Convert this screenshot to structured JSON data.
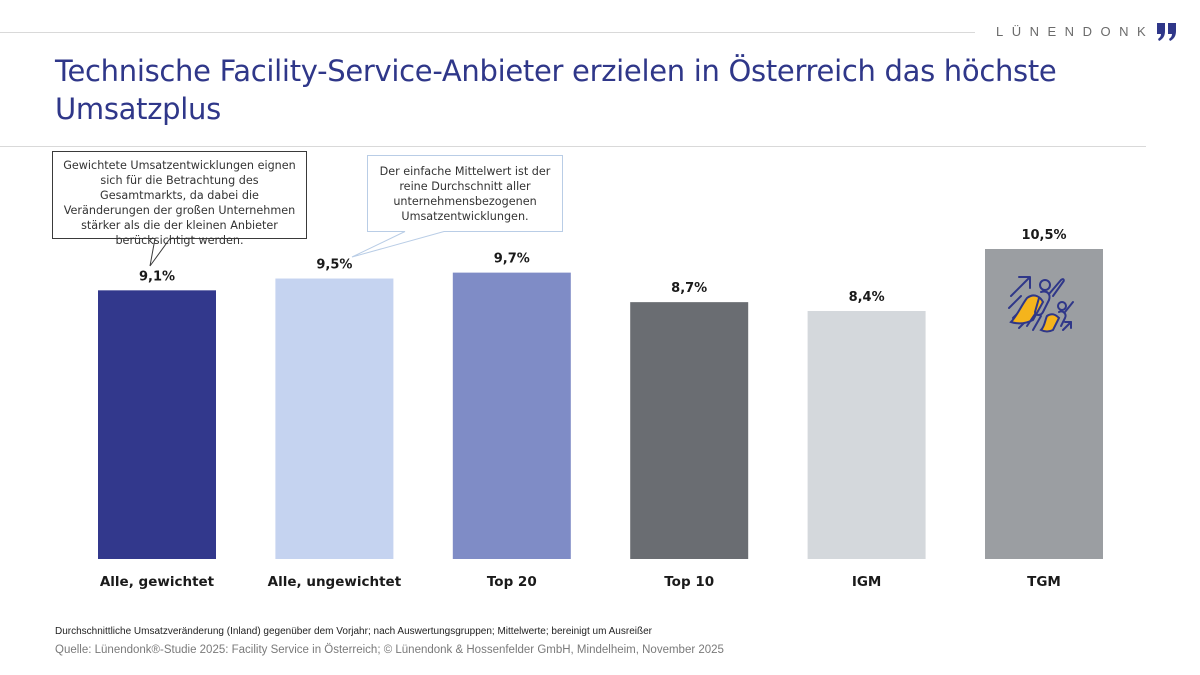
{
  "brand": {
    "name": "LÜNENDONK",
    "logo_icon": "quotation-mark-icon",
    "accent_color": "#2f3789"
  },
  "title": "Technische Facility-Service-Anbieter erzielen in Österreich das höchste Umsatzplus",
  "callouts": [
    {
      "text": "Gewichtete Umsatzentwicklungen eignen sich für die Betrachtung des Gesamtmarkts, da dabei die Veränderungen der großen Unternehmen stärker als die der kleinen Anbieter berücksichtigt werden.",
      "points_to": "Alle, gewichtet"
    },
    {
      "text": "Der einfache Mittelwert ist der reine Durchschnitt aller unternehmensbezogenen Umsatzentwicklungen.",
      "points_to": "Alle, ungewichtet"
    }
  ],
  "chart_data": {
    "type": "bar",
    "title": "Technische Facility-Service-Anbieter erzielen in Österreich das höchste Umsatzplus",
    "xlabel": "",
    "ylabel": "",
    "categories": [
      "Alle, gewichtet",
      "Alle, ungewichtet",
      "Top 20",
      "Top 10",
      "IGM",
      "TGM"
    ],
    "values": [
      9.1,
      9.5,
      9.7,
      8.7,
      8.4,
      10.5
    ],
    "value_labels": [
      "9,1%",
      "9,5%",
      "9,7%",
      "8,7%",
      "8,4%",
      "10,5%"
    ],
    "colors": [
      "#32388c",
      "#c5d3f0",
      "#7f8cc6",
      "#6a6d72",
      "#d4d8dc",
      "#9b9ea2"
    ],
    "unit": "%",
    "ylim": [
      0,
      10.5
    ],
    "grid": false,
    "legend": "none",
    "annotations": [
      "superhero-icon on TGM bar"
    ]
  },
  "footnote": "Durchschnittliche Umsatzveränderung (Inland) gegenüber dem Vorjahr; nach Auswertungsgruppen; Mittelwerte; bereinigt um Ausreißer",
  "source": "Quelle: Lünendonk®-Studie 2025: Facility Service in Österreich; © Lünendonk & Hossenfelder GmbH, Mindelheim, November 2025"
}
